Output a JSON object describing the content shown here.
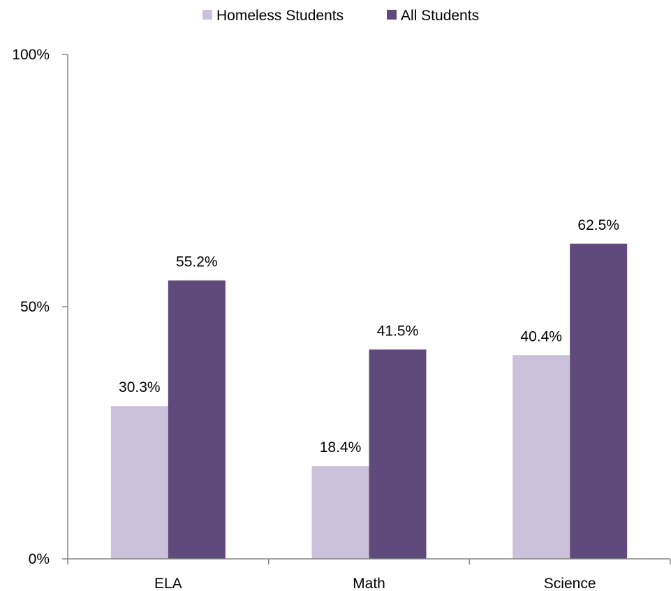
{
  "chart_data": {
    "type": "bar",
    "categories": [
      "ELA",
      "Math",
      "Science"
    ],
    "series": [
      {
        "name": "Homeless Students",
        "values": [
          30.3,
          18.4,
          40.4
        ],
        "labels": [
          "30.3%",
          "18.4%",
          "40.4%"
        ],
        "color": "#ccc1da"
      },
      {
        "name": "All Students",
        "values": [
          55.2,
          41.5,
          62.5
        ],
        "labels": [
          "55.2%",
          "41.5%",
          "62.5%"
        ],
        "color": "#604a7b"
      }
    ],
    "ylim": [
      0,
      100
    ],
    "y_ticks": [
      0,
      50,
      100
    ],
    "y_tick_labels": [
      "0%",
      "50%",
      "100%"
    ],
    "legend_position": "top-center",
    "grid": false
  }
}
